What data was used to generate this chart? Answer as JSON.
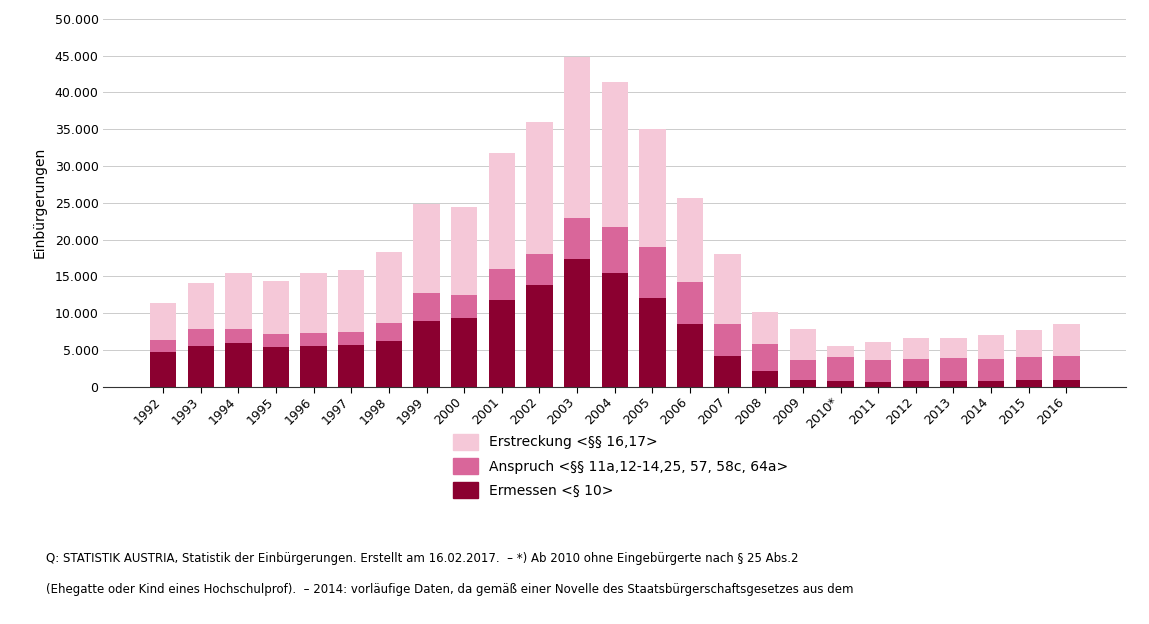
{
  "years": [
    "1992",
    "1993",
    "1994",
    "1995",
    "1996",
    "1997",
    "1998",
    "1999",
    "2000",
    "2001",
    "2002",
    "2003",
    "2004",
    "2005",
    "2006",
    "2007",
    "2008",
    "2009",
    "2010*",
    "2011",
    "2012",
    "2013",
    "2014",
    "2015",
    "2016"
  ],
  "ermessen": [
    4700,
    5500,
    5900,
    5400,
    5500,
    5700,
    6200,
    9000,
    9300,
    11800,
    13900,
    17400,
    15500,
    12100,
    8600,
    4200,
    2200,
    900,
    800,
    700,
    800,
    800,
    800,
    900,
    1000
  ],
  "anspruch": [
    1600,
    2400,
    2000,
    1800,
    1800,
    1800,
    2500,
    3700,
    3200,
    4200,
    4100,
    5600,
    6200,
    6900,
    5700,
    4300,
    3600,
    2800,
    3200,
    2900,
    3000,
    3100,
    3000,
    3100,
    3200
  ],
  "erstreckung": [
    5100,
    6200,
    7500,
    7200,
    8200,
    8400,
    9600,
    12200,
    11900,
    15800,
    18000,
    21800,
    19700,
    16000,
    11300,
    9500,
    4400,
    4100,
    1600,
    2500,
    2900,
    2800,
    3200,
    3700,
    4400
  ],
  "color_ermessen": "#8b0030",
  "color_anspruch": "#d9669a",
  "color_erstreckung": "#f5c8d8",
  "ylabel": "Einbürgerungen",
  "ylim": [
    0,
    50000
  ],
  "yticks": [
    0,
    5000,
    10000,
    15000,
    20000,
    25000,
    30000,
    35000,
    40000,
    45000,
    50000
  ],
  "legend_erstreckung": "Erstreckung <§§ 16,17>",
  "legend_anspruch": "Anspruch <§§ 11a,12-14,25, 57, 58c, 64a>",
  "legend_ermessen": "Ermessen <§ 10>",
  "footer_line1": "Q: STATISTIK AUSTRIA, Statistik der Einbürgerungen. Erstellt am 16.02.2017.  – *) Ab 2010 ohne Eingebürgerte nach § 25 Abs.2",
  "footer_line2": "(Ehegatte oder Kind eines Hochschulprof).  – 2014: vorläufige Daten, da gemäß einer Novelle des Staatsbürgerschaftsgesetzes aus dem"
}
